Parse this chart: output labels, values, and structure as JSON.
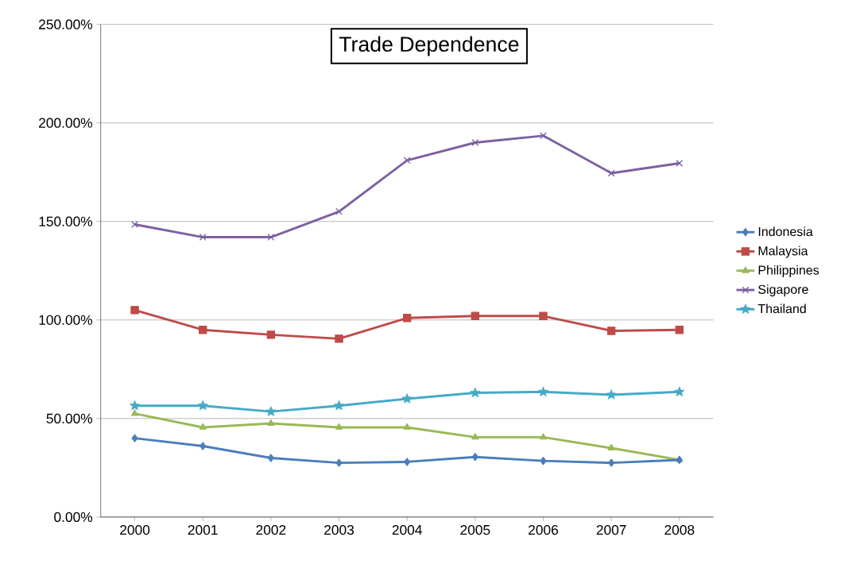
{
  "chart_data": {
    "type": "line",
    "title": "Trade Dependence",
    "categories": [
      "2000",
      "2001",
      "2002",
      "2003",
      "2004",
      "2005",
      "2006",
      "2007",
      "2008"
    ],
    "series": [
      {
        "name": "Indonesia",
        "color": "#4a7ebb",
        "marker": "diamond",
        "values": [
          40,
          36,
          30,
          27.5,
          28,
          30.5,
          28.5,
          27.5,
          29
        ]
      },
      {
        "name": "Malaysia",
        "color": "#be4b48",
        "marker": "square",
        "values": [
          105,
          95,
          92.5,
          90.5,
          101,
          102,
          102,
          94.5,
          95
        ]
      },
      {
        "name": "Philippines",
        "color": "#98b954",
        "marker": "triangle",
        "values": [
          52.5,
          45.5,
          47.5,
          45.5,
          45.5,
          40.5,
          40.5,
          35,
          29
        ]
      },
      {
        "name": "Sigapore",
        "color": "#7d60a0",
        "marker": "cross",
        "values": [
          148.5,
          142,
          142,
          155,
          181,
          190,
          193.5,
          174.5,
          179.5
        ]
      },
      {
        "name": "Thailand",
        "color": "#46aac5",
        "marker": "star",
        "values": [
          56.5,
          56.5,
          53.5,
          56.5,
          60,
          63,
          63.5,
          62,
          63.5
        ]
      }
    ],
    "ylim": [
      0,
      250
    ],
    "yticks": [
      {
        "value": 0,
        "label": "0.00%"
      },
      {
        "value": 50,
        "label": "50.00%"
      },
      {
        "value": 100,
        "label": "100.00%"
      },
      {
        "value": 150,
        "label": "150.00%"
      },
      {
        "value": 200,
        "label": "200.00%"
      },
      {
        "value": 250,
        "label": "250.00%"
      }
    ],
    "grid": "y",
    "legend": "right",
    "line_style": "solid"
  }
}
